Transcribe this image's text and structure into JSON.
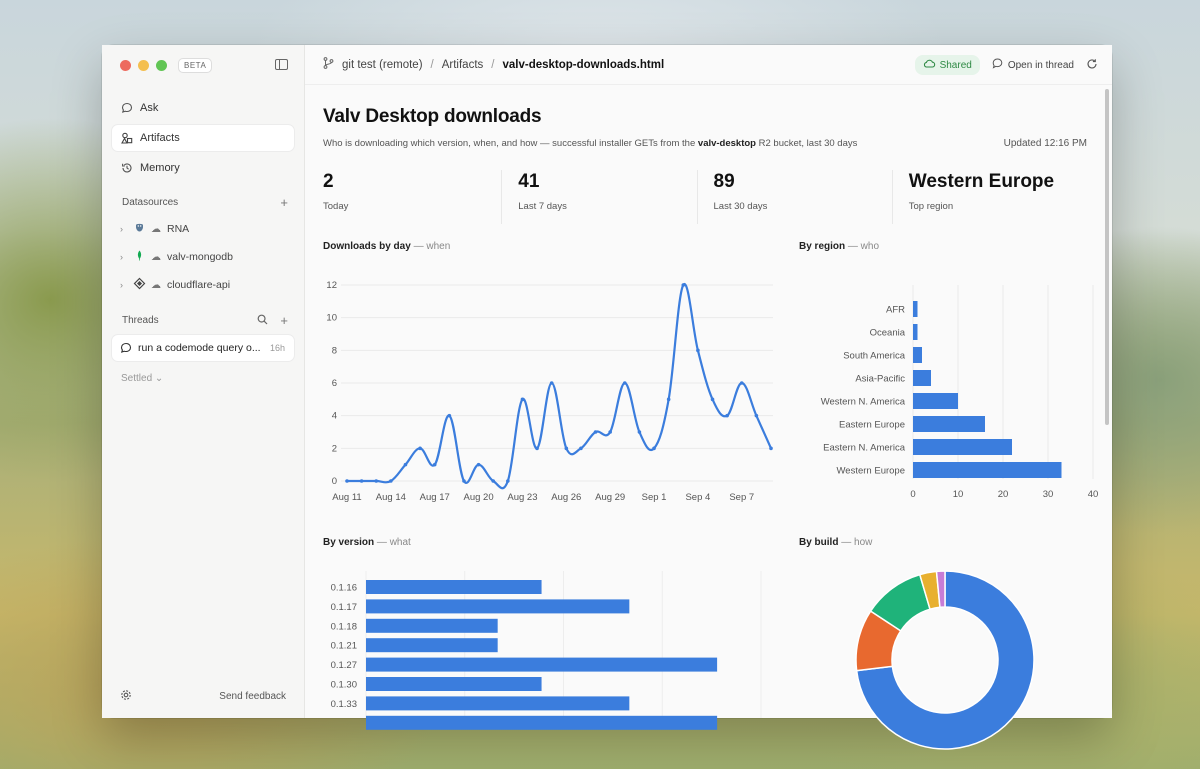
{
  "app": {
    "badge": "BETA",
    "nav": [
      {
        "label": "Ask",
        "icon": "chat-bubble-icon",
        "active": false
      },
      {
        "label": "Artifacts",
        "icon": "shapes-icon",
        "active": true
      },
      {
        "label": "Memory",
        "icon": "history-icon",
        "active": false
      }
    ],
    "datasources_header": "Datasources",
    "datasources": [
      {
        "label": "RNA",
        "icon": "postgres-icon"
      },
      {
        "label": "valv-mongodb",
        "icon": "mongodb-leaf-icon"
      },
      {
        "label": "cloudflare-api",
        "icon": "cloudflare-icon"
      }
    ],
    "threads_header": "Threads",
    "thread": {
      "label": "run a codemode query o...",
      "age": "16h"
    },
    "settled": "Settled",
    "send_feedback": "Send feedback"
  },
  "topbar": {
    "breadcrumb": [
      "git test (remote)",
      "Artifacts",
      "valv-desktop-downloads.html"
    ],
    "shared": "Shared",
    "open_in_thread": "Open in thread"
  },
  "page": {
    "title": "Valv Desktop downloads",
    "subtitle_pre": "Who is downloading which version, when, and how — successful installer GETs from the ",
    "subtitle_bold": "valv-desktop",
    "subtitle_post": " R2 bucket, last 30 days",
    "updated": "Updated 12:16 PM"
  },
  "stats": [
    {
      "value": "2",
      "label": "Today"
    },
    {
      "value": "41",
      "label": "Last 7 days"
    },
    {
      "value": "89",
      "label": "Last 30 days"
    },
    {
      "value": "Western Europe",
      "label": "Top region"
    }
  ],
  "panels": {
    "by_day": {
      "title": "Downloads by day",
      "suffix": "— when"
    },
    "by_region": {
      "title": "By region",
      "suffix": "— who"
    },
    "by_version": {
      "title": "By version",
      "suffix": "— what"
    },
    "by_build": {
      "title": "By build",
      "suffix": "— how"
    }
  },
  "chart_data": [
    {
      "type": "line",
      "title": "Downloads by day",
      "x_ticks": [
        "Aug 11",
        "Aug 14",
        "Aug 17",
        "Aug 20",
        "Aug 23",
        "Aug 26",
        "Aug 29",
        "Sep 1",
        "Sep 4",
        "Sep 7"
      ],
      "y_ticks": [
        0,
        2,
        4,
        6,
        8,
        10,
        12
      ],
      "ylim": [
        0,
        12
      ],
      "color": "#3b7ddd",
      "values": [
        0,
        0,
        0,
        0,
        1,
        2,
        1,
        4,
        0,
        1,
        0,
        0,
        5,
        2,
        6,
        2,
        2,
        3,
        3,
        6,
        3,
        2,
        5,
        12,
        8,
        5,
        4,
        6,
        4,
        2
      ]
    },
    {
      "type": "bar",
      "orientation": "horizontal",
      "title": "By region",
      "categories": [
        "AFR",
        "Oceania",
        "South America",
        "Asia-Pacific",
        "Western N. America",
        "Eastern Europe",
        "Eastern N. America",
        "Western Europe"
      ],
      "values": [
        1,
        1,
        2,
        4,
        10,
        16,
        22,
        33
      ],
      "x_ticks": [
        0,
        10,
        20,
        30,
        40
      ],
      "xlim": [
        0,
        40
      ],
      "color": "#3b7ddd"
    },
    {
      "type": "bar",
      "orientation": "horizontal",
      "title": "By version",
      "categories": [
        "0.1.16",
        "0.1.17",
        "0.1.18",
        "0.1.21",
        "0.1.27",
        "0.1.30",
        "0.1.33"
      ],
      "values": [
        8,
        12,
        6,
        6,
        16,
        8,
        12
      ],
      "xlim": [
        0,
        18
      ],
      "color": "#3b7ddd"
    },
    {
      "type": "pie",
      "title": "By build",
      "values": [
        72,
        11,
        11,
        3,
        1.5
      ],
      "colors": [
        "#3b7ddd",
        "#e8692f",
        "#1fb37a",
        "#e8b02f",
        "#c77dd6"
      ]
    }
  ]
}
